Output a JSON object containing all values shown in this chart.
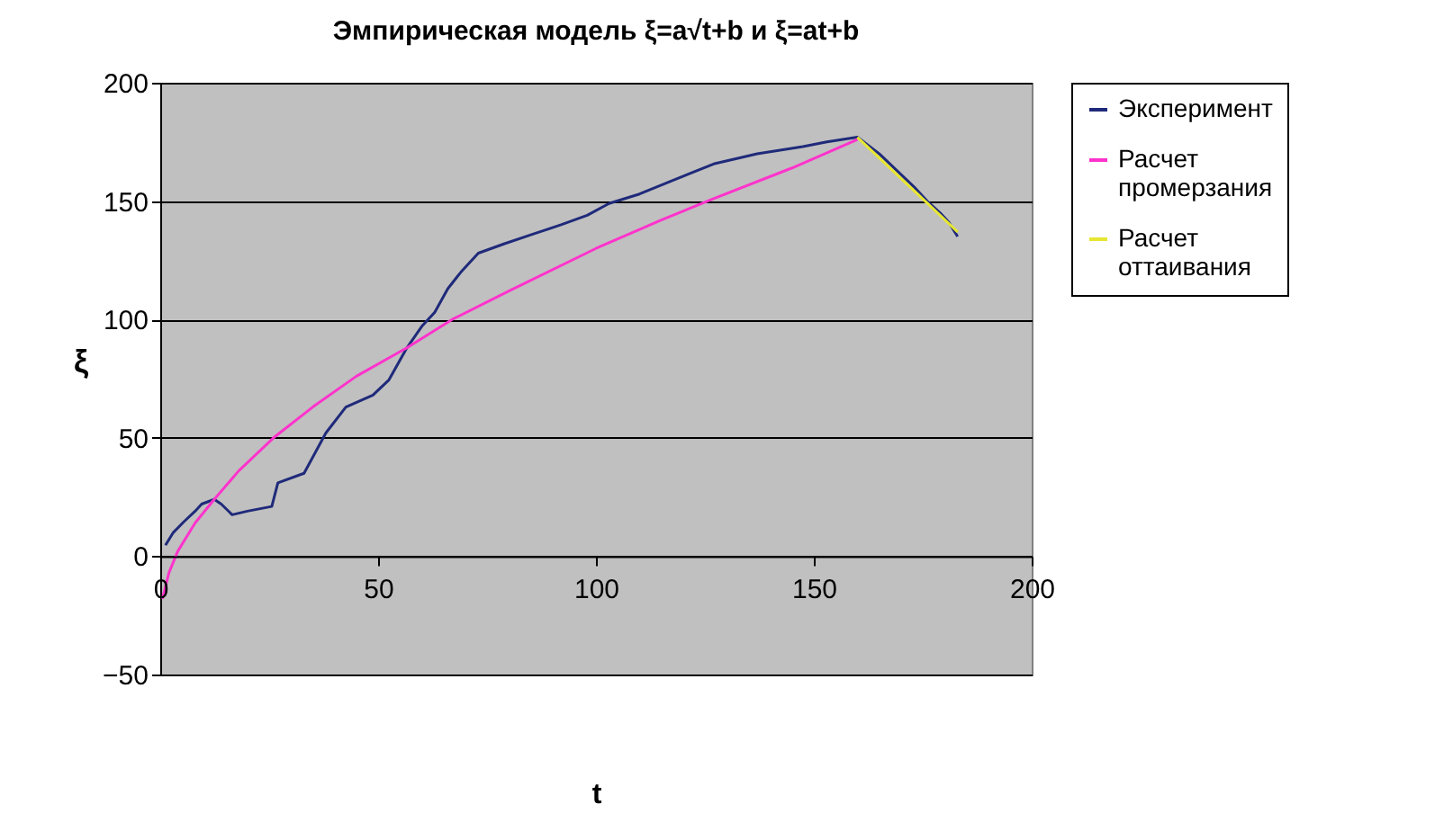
{
  "chart_data": {
    "type": "line",
    "title": "Эмпирическая модель ξ=a√t+b и ξ=at+b",
    "xlabel": "t",
    "ylabel": "ξ",
    "xlim": [
      0,
      200
    ],
    "xticks": [
      0,
      50,
      100,
      150,
      200
    ],
    "ylim": [
      -50,
      200
    ],
    "yticks": [
      -50,
      0,
      50,
      100,
      150,
      200
    ],
    "grid": "y",
    "legend": "right",
    "series": [
      {
        "name": "Эксперимент",
        "color": "#1f2a7a",
        "x": [
          1.2,
          3,
          5.4,
          8,
          9.5,
          12.4,
          14,
          16.5,
          20,
          25.6,
          27,
          33,
          38,
          42.6,
          48.8,
          52.5,
          56.6,
          60,
          63,
          66,
          69,
          73,
          79,
          85.5,
          92,
          98,
          103,
          110,
          118,
          127,
          137,
          147.5,
          153,
          160,
          165,
          169,
          173,
          176,
          179,
          181,
          183
        ],
        "values": [
          4.6,
          10,
          14.5,
          19,
          22,
          24,
          22,
          17.5,
          19,
          21,
          31,
          35,
          52,
          63,
          68,
          74.5,
          88,
          97,
          103,
          113,
          120,
          128,
          132,
          136,
          140,
          144,
          149,
          153,
          159,
          165.7,
          170,
          173,
          175,
          177,
          170,
          163,
          156,
          150,
          145,
          141,
          135
        ]
      },
      {
        "name": "Расчет промерзания",
        "color": "#ff33cc",
        "x": [
          0.5,
          2,
          4,
          8,
          12.4,
          18,
          26,
          35,
          45,
          56.6,
          67,
          80,
          100,
          115,
          127,
          145,
          160
        ],
        "values": [
          -18,
          -7,
          2,
          14,
          24,
          36,
          50,
          63,
          76,
          88,
          100,
          112,
          130,
          142,
          151,
          164,
          176
        ]
      },
      {
        "name": "Расчет оттаивания",
        "color": "#e6e633",
        "x": [
          160,
          183
        ],
        "values": [
          177,
          137
        ]
      }
    ]
  }
}
